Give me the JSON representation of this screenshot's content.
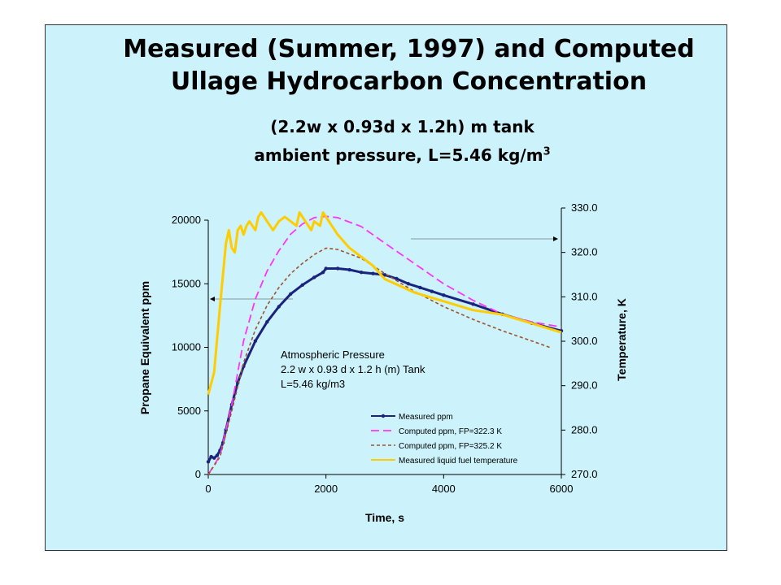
{
  "slide": {
    "title_line1": "Measured (Summer, 1997) and Computed",
    "title_line2": "Ullage Hydrocarbon Concentration",
    "subtitle_line1": "(2.2w x 0.93d x 1.2h) m tank",
    "subtitle_line2_main": "ambient pressure, L=5.46 kg/m",
    "subtitle_line2_sup": "3",
    "background": "#ccf2fb"
  },
  "chart_data": {
    "type": "line",
    "xlabel": "Time, s",
    "ylabel": "Propane Equivalent ppm",
    "y2label": "Temperature, K",
    "xlim": [
      0,
      6000
    ],
    "ylim": [
      0,
      20000
    ],
    "y2lim": [
      270,
      330
    ],
    "x_ticks": [
      "0",
      "2000",
      "4000",
      "6000"
    ],
    "y_ticks": [
      "0",
      "5000",
      "10000",
      "15000",
      "20000"
    ],
    "y2_ticks": [
      "270.0",
      "280.0",
      "290.0",
      "300.0",
      "310.0",
      "320.0",
      "330.0"
    ],
    "annotation": [
      "Atmospheric Pressure",
      "2.2 w x 0.93 d x 1.2 h  (m) Tank",
      "L=5.46 kg/m3"
    ],
    "legend_position": "bottom-right",
    "series": [
      {
        "name": "Measured ppm",
        "color": "#1a237e",
        "axis": "left",
        "style": "solid-marker",
        "x": [
          0,
          50,
          100,
          150,
          200,
          250,
          300,
          400,
          500,
          600,
          800,
          1000,
          1200,
          1400,
          1600,
          1800,
          1950,
          2000,
          2200,
          2400,
          2600,
          2800,
          3000,
          3200,
          3400,
          3600,
          3800,
          4000,
          4500,
          5000,
          5500,
          6000
        ],
        "y": [
          1000,
          1400,
          1300,
          1500,
          1900,
          2500,
          3500,
          5500,
          7200,
          8500,
          10500,
          12000,
          13200,
          14200,
          14900,
          15500,
          15900,
          16200,
          16200,
          16100,
          15900,
          15800,
          15700,
          15400,
          15000,
          14700,
          14400,
          14100,
          13400,
          12600,
          11900,
          11300
        ]
      },
      {
        "name": "Computed ppm, FP=322.3 K",
        "color": "#ff33ff",
        "axis": "left",
        "style": "long-dash",
        "x": [
          0,
          200,
          400,
          600,
          800,
          1000,
          1200,
          1400,
          1600,
          1800,
          2000,
          2200,
          2600,
          3000,
          3500,
          4000,
          4500,
          5000,
          5500,
          6000
        ],
        "y": [
          0,
          1500,
          5500,
          10500,
          13800,
          16000,
          17600,
          18900,
          19700,
          20200,
          20300,
          20200,
          19500,
          18200,
          16600,
          15000,
          13700,
          12600,
          12000,
          11600
        ]
      },
      {
        "name": "Computed ppm, FP=325.2 K",
        "color": "#a0522d",
        "axis": "left",
        "style": "short-dash",
        "x": [
          0,
          200,
          400,
          600,
          800,
          1000,
          1200,
          1400,
          1600,
          1800,
          2000,
          2200,
          2600,
          3000,
          3500,
          4000,
          4500,
          5000,
          5500,
          5800
        ],
        "y": [
          0,
          1400,
          5000,
          8800,
          11400,
          13300,
          14700,
          15800,
          16600,
          17300,
          17800,
          17700,
          17000,
          15800,
          14400,
          13200,
          12200,
          11300,
          10500,
          10000
        ]
      },
      {
        "name": "Measured liquid fuel temperature",
        "color": "#ffcc00",
        "axis": "right",
        "style": "solid-dots",
        "x": [
          0,
          100,
          200,
          300,
          350,
          400,
          450,
          500,
          550,
          600,
          650,
          700,
          800,
          850,
          900,
          950,
          1000,
          1100,
          1200,
          1300,
          1400,
          1500,
          1550,
          1600,
          1700,
          1750,
          1800,
          1900,
          1950,
          2000,
          2200,
          2400,
          2600,
          2800,
          3000,
          3500,
          4000,
          4500,
          5000,
          5500,
          6000
        ],
        "y": [
          288,
          293,
          308,
          322,
          325,
          321,
          320,
          325,
          326,
          324,
          326,
          327,
          325,
          328,
          329,
          328,
          327,
          325,
          327,
          328,
          327,
          326,
          329,
          328,
          326,
          325,
          327,
          326,
          329,
          328,
          324,
          321,
          319,
          317,
          314,
          311,
          309,
          307,
          306,
          304,
          302
        ]
      }
    ]
  }
}
